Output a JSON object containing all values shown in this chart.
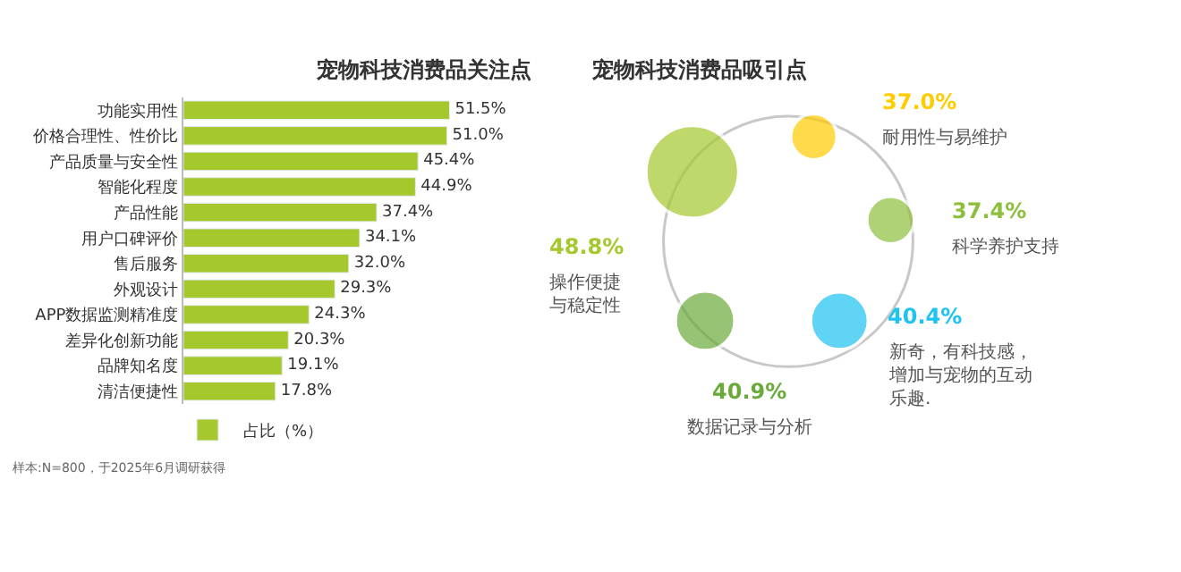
{
  "chart_data": [
    {
      "type": "bar",
      "orientation": "horizontal",
      "title": "宠物科技消费品关注点",
      "categories": [
        "功能实用性",
        "价格合理性、性价比",
        "产品质量与安全性",
        "智能化程度",
        "产品性能",
        "用户口碑评价",
        "售后服务",
        "外观设计",
        "APP数据监测精准度",
        "差异化创新功能",
        "品牌知名度",
        "清洁便捷性"
      ],
      "series": [
        {
          "name": "占比（%）",
          "color": "#a5c82d",
          "values": [
            51.5,
            51.0,
            45.4,
            44.9,
            37.4,
            34.1,
            32.0,
            29.3,
            24.3,
            20.3,
            19.1,
            17.8
          ],
          "value_labels": [
            "51.5%",
            "51.0%",
            "45.4%",
            "44.9%",
            "37.4%",
            "34.1%",
            "32.0%",
            "29.3%",
            "24.3%",
            "20.3%",
            "19.1%",
            "17.8%"
          ]
        }
      ],
      "legend": "bottom left",
      "annotations": [
        "样本:N=800，于2025年6月调研获得"
      ]
    },
    {
      "type": "other",
      "title": "宠物科技消费品吸引点",
      "categories": [
        "操作便捷与稳定性",
        "耐用性与易维护",
        "科学养护支持",
        "新奇，有科技感，增加与宠物的互动乐趣.",
        "数据记录与分析"
      ],
      "values": [
        48.8,
        37.0,
        37.4,
        40.4,
        40.9
      ],
      "value_labels": [
        "48.8%",
        "37.0%",
        "37.4%",
        "40.4%",
        "40.9%"
      ],
      "colors": [
        "#a5c82d",
        "#ffcc00",
        "#8dbf3c",
        "#1ec3f0",
        "#6aaa3a"
      ]
    }
  ]
}
